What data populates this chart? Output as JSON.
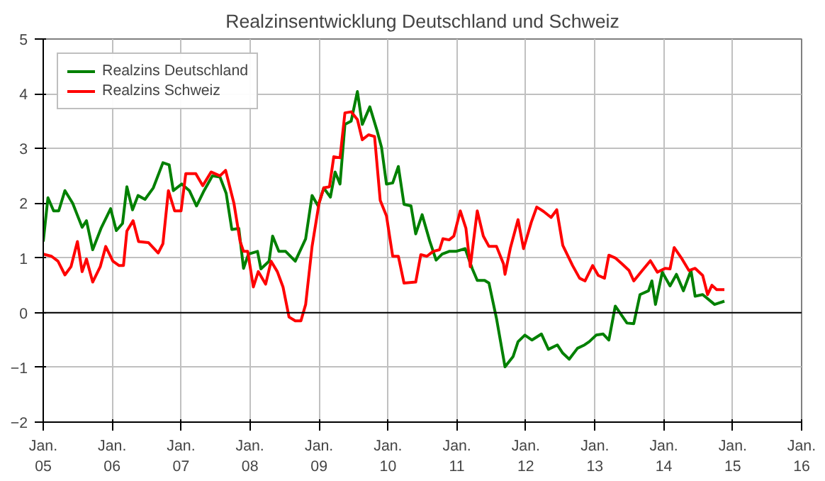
{
  "chart_data": {
    "type": "line",
    "title": "Realzinsentwicklung Deutschland und Schweiz",
    "xlim": [
      "2005-01-01",
      "2016-01-01"
    ],
    "ylim": [
      -2,
      5
    ],
    "yticks": [
      -2,
      -1,
      0,
      1,
      2,
      3,
      4,
      5
    ],
    "xticks": [
      {
        "value": "2005-01-01",
        "label": "Jan.\n05"
      },
      {
        "value": "2006-01-01",
        "label": "Jan.\n06"
      },
      {
        "value": "2007-01-01",
        "label": "Jan.\n07"
      },
      {
        "value": "2008-01-01",
        "label": "Jan.\n08"
      },
      {
        "value": "2009-01-01",
        "label": "Jan.\n09"
      },
      {
        "value": "2010-01-01",
        "label": "Jan.\n10"
      },
      {
        "value": "2011-01-01",
        "label": "Jan.\n11"
      },
      {
        "value": "2012-01-01",
        "label": "Jan.\n12"
      },
      {
        "value": "2013-01-01",
        "label": "Jan.\n13"
      },
      {
        "value": "2014-01-01",
        "label": "Jan.\n14"
      },
      {
        "value": "2015-01-01",
        "label": "Jan.\n15"
      },
      {
        "value": "2016-01-01",
        "label": "Jan.\n16"
      }
    ],
    "grid": true,
    "legend": "top left",
    "ref_lines": [
      {
        "axis": "y",
        "value": 0,
        "label": null,
        "color": "#000000"
      }
    ],
    "series": [
      {
        "name": "Realzins Deutschland",
        "color": "#008000",
        "x": [
          "2005-01-01",
          "2005-01-26",
          "2005-02-25",
          "2005-03-24",
          "2005-04-26",
          "2005-06-06",
          "2005-07-26",
          "2005-08-18",
          "2005-09-20",
          "2005-11-03",
          "2005-12-24",
          "2006-01-23",
          "2006-02-25",
          "2006-03-20",
          "2006-04-19",
          "2006-05-18",
          "2006-06-24",
          "2006-08-07",
          "2006-09-27",
          "2006-10-30",
          "2006-11-21",
          "2007-01-05",
          "2007-02-14",
          "2007-03-24",
          "2007-05-03",
          "2007-06-16",
          "2007-07-26",
          "2007-08-28",
          "2007-09-27",
          "2007-11-03",
          "2007-11-28",
          "2007-12-24",
          "2008-02-10",
          "2008-02-28",
          "2008-04-11",
          "2008-04-30",
          "2008-06-02",
          "2008-07-08",
          "2008-08-28",
          "2008-10-22",
          "2008-11-25",
          "2008-12-27",
          "2009-01-26",
          "2009-03-02",
          "2009-03-27",
          "2009-04-22",
          "2009-05-18",
          "2009-06-20",
          "2009-07-23",
          "2009-08-18",
          "2009-09-27",
          "2009-11-03",
          "2009-11-28",
          "2009-12-24",
          "2010-01-26",
          "2010-02-25",
          "2010-03-27",
          "2010-05-03",
          "2010-05-28",
          "2010-07-01",
          "2010-08-10",
          "2010-09-13",
          "2010-10-15",
          "2010-11-21",
          "2010-12-27",
          "2011-02-14",
          "2011-03-24",
          "2011-04-19",
          "2011-05-28",
          "2011-06-20",
          "2011-07-30",
          "2011-09-13",
          "2011-10-26",
          "2011-11-21",
          "2011-12-27",
          "2012-02-03",
          "2012-03-24",
          "2012-04-30",
          "2012-06-16",
          "2012-07-15",
          "2012-08-18",
          "2012-10-01",
          "2012-11-07",
          "2012-12-02",
          "2013-01-08",
          "2013-02-14",
          "2013-03-16",
          "2013-04-19",
          "2013-06-20",
          "2013-07-26",
          "2013-08-28",
          "2013-10-12",
          "2013-10-30",
          "2013-11-18",
          "2013-12-24",
          "2014-02-03",
          "2014-03-09",
          "2014-04-15",
          "2014-05-25",
          "2014-06-16",
          "2014-07-26",
          "2014-09-27",
          "2014-11-18"
        ],
        "values": [
          1.3,
          2.1,
          1.86,
          1.86,
          2.23,
          2.0,
          1.56,
          1.68,
          1.15,
          1.54,
          1.9,
          1.5,
          1.63,
          2.3,
          1.88,
          2.14,
          2.07,
          2.28,
          2.74,
          2.7,
          2.23,
          2.35,
          2.23,
          1.95,
          2.23,
          2.5,
          2.48,
          2.18,
          1.52,
          1.54,
          0.81,
          1.07,
          1.12,
          0.8,
          0.94,
          1.4,
          1.12,
          1.12,
          0.94,
          1.35,
          2.14,
          1.95,
          2.28,
          2.11,
          2.57,
          2.35,
          3.44,
          3.5,
          4.04,
          3.44,
          3.76,
          3.34,
          3.02,
          2.35,
          2.37,
          2.67,
          1.98,
          1.95,
          1.44,
          1.79,
          1.31,
          0.96,
          1.07,
          1.12,
          1.12,
          1.17,
          0.8,
          0.59,
          0.59,
          0.54,
          -0.11,
          -0.99,
          -0.8,
          -0.53,
          -0.41,
          -0.5,
          -0.39,
          -0.67,
          -0.59,
          -0.74,
          -0.85,
          -0.65,
          -0.59,
          -0.53,
          -0.41,
          -0.39,
          -0.5,
          0.12,
          -0.19,
          -0.2,
          0.33,
          0.4,
          0.58,
          0.15,
          0.74,
          0.49,
          0.7,
          0.4,
          0.77,
          0.3,
          0.33,
          0.15,
          0.21
        ]
      },
      {
        "name": "Realzins Schweiz",
        "color": "#ff0000",
        "x": [
          "2005-01-01",
          "2005-02-14",
          "2005-03-20",
          "2005-04-26",
          "2005-05-28",
          "2005-07-01",
          "2005-07-26",
          "2005-08-18",
          "2005-09-20",
          "2005-10-30",
          "2005-11-28",
          "2006-01-05",
          "2006-02-07",
          "2006-03-02",
          "2006-03-20",
          "2006-04-22",
          "2006-05-21",
          "2006-07-12",
          "2006-09-02",
          "2006-09-27",
          "2006-10-26",
          "2006-11-28",
          "2007-01-01",
          "2007-01-26",
          "2007-03-20",
          "2007-04-26",
          "2007-06-09",
          "2007-07-26",
          "2007-08-25",
          "2007-10-08",
          "2007-11-10",
          "2007-11-28",
          "2007-12-20",
          "2008-01-19",
          "2008-02-14",
          "2008-03-24",
          "2008-04-22",
          "2008-05-25",
          "2008-06-24",
          "2008-07-26",
          "2008-08-28",
          "2008-09-27",
          "2008-10-22",
          "2008-11-25",
          "2009-01-01",
          "2009-01-26",
          "2009-02-25",
          "2009-03-20",
          "2009-04-22",
          "2009-05-18",
          "2009-06-20",
          "2009-07-23",
          "2009-08-18",
          "2009-09-20",
          "2009-10-22",
          "2009-11-21",
          "2009-12-24",
          "2010-01-26",
          "2010-02-25",
          "2010-03-27",
          "2010-05-28",
          "2010-06-24",
          "2010-07-26",
          "2010-08-28",
          "2010-10-01",
          "2010-10-19",
          "2010-11-21",
          "2010-12-16",
          "2011-01-19",
          "2011-02-18",
          "2011-03-13",
          "2011-04-19",
          "2011-05-21",
          "2011-06-20",
          "2011-07-30",
          "2011-09-05",
          "2011-09-13",
          "2011-10-12",
          "2011-11-21",
          "2011-12-20",
          "2012-01-30",
          "2012-02-28",
          "2012-04-04",
          "2012-05-14",
          "2012-06-13",
          "2012-07-15",
          "2012-09-05",
          "2012-10-12",
          "2012-11-10",
          "2012-12-20",
          "2013-01-19",
          "2013-02-21",
          "2013-03-16",
          "2013-04-19",
          "2013-05-25",
          "2013-07-01",
          "2013-07-26",
          "2013-09-09",
          "2013-10-22",
          "2013-11-28",
          "2014-01-08",
          "2014-02-03",
          "2014-02-25",
          "2014-04-04",
          "2014-05-14",
          "2014-06-16",
          "2014-07-26",
          "2014-08-21",
          "2014-09-13",
          "2014-10-08",
          "2014-11-18"
        ],
        "values": [
          1.07,
          1.03,
          0.94,
          0.69,
          0.84,
          1.3,
          0.75,
          0.98,
          0.56,
          0.84,
          1.21,
          0.94,
          0.86,
          0.86,
          1.49,
          1.68,
          1.3,
          1.28,
          1.09,
          1.26,
          2.23,
          1.86,
          1.86,
          2.54,
          2.54,
          2.32,
          2.57,
          2.5,
          2.6,
          2.0,
          1.3,
          1.12,
          1.12,
          0.47,
          0.75,
          0.52,
          0.94,
          0.75,
          0.47,
          -0.08,
          -0.15,
          -0.15,
          0.15,
          1.21,
          2.0,
          2.28,
          2.3,
          2.85,
          2.83,
          3.65,
          3.67,
          3.53,
          3.16,
          3.25,
          3.22,
          2.05,
          1.77,
          1.03,
          1.03,
          0.54,
          0.56,
          1.06,
          1.03,
          1.12,
          1.15,
          1.35,
          1.33,
          1.4,
          1.86,
          1.54,
          0.84,
          1.86,
          1.4,
          1.21,
          1.21,
          0.89,
          0.7,
          1.19,
          1.7,
          1.17,
          1.65,
          1.93,
          1.85,
          1.74,
          1.88,
          1.23,
          0.86,
          0.63,
          0.58,
          0.86,
          0.68,
          0.63,
          1.05,
          1.0,
          0.89,
          0.77,
          0.58,
          0.77,
          0.95,
          0.74,
          0.81,
          0.8,
          1.19,
          1.0,
          0.77,
          0.81,
          0.68,
          0.33,
          0.5,
          0.42,
          0.42
        ]
      }
    ]
  }
}
